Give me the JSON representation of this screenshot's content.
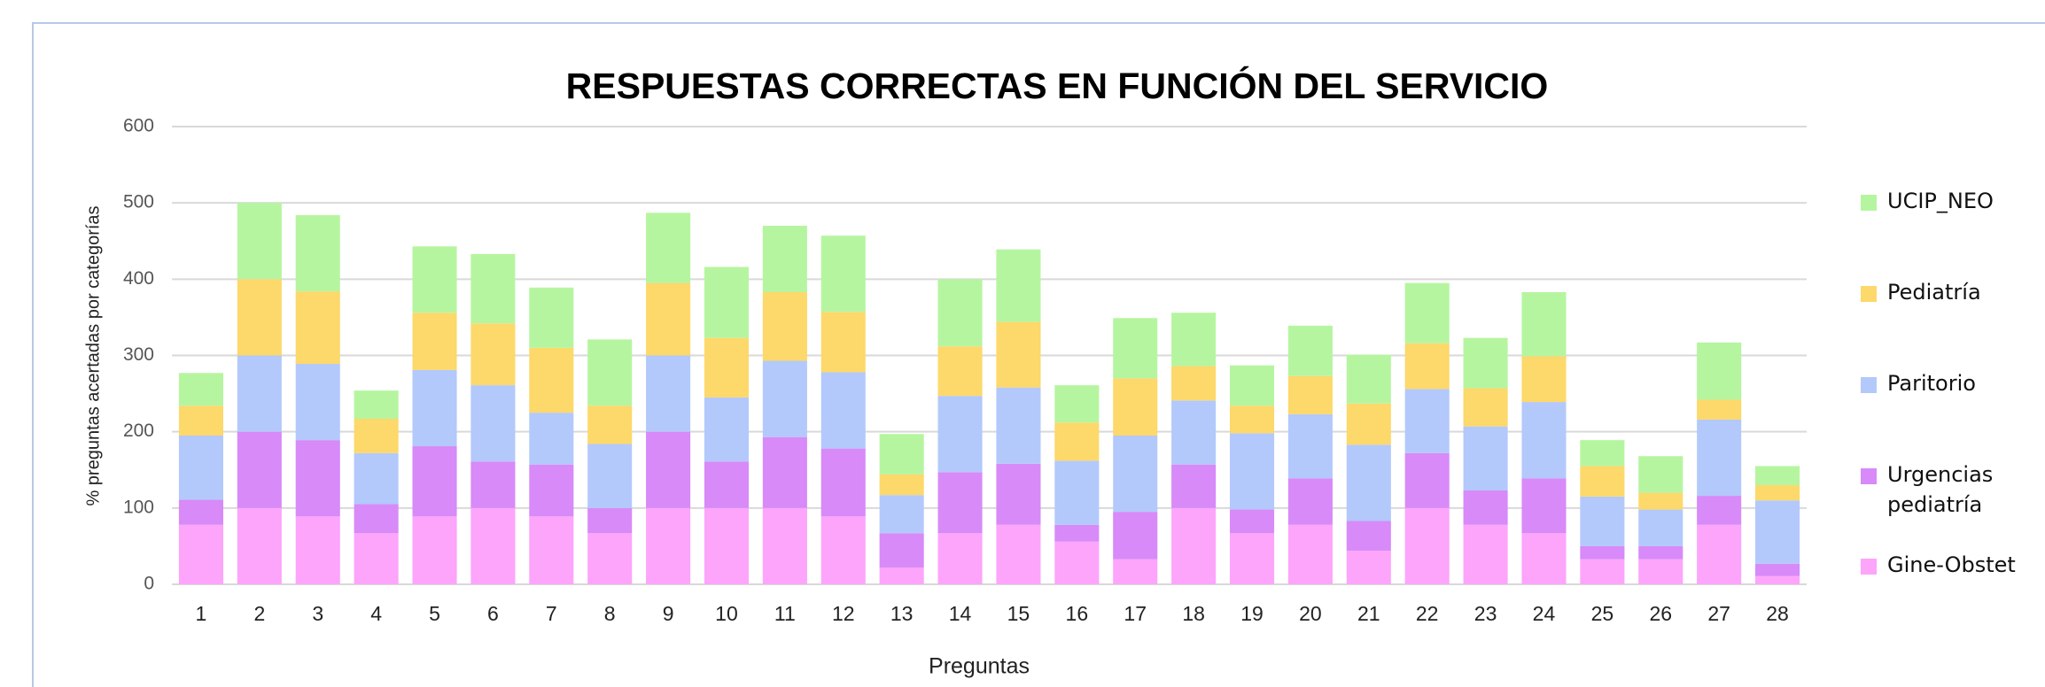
{
  "chart_data": {
    "type": "stacked_bar",
    "title": "RESPUESTAS CORRECTAS EN FUNCIÓN DEL SERVICIO",
    "x_label": "Preguntas",
    "y_label": "% preguntas acertadas por categorías",
    "categories": [
      "1",
      "2",
      "3",
      "4",
      "5",
      "6",
      "7",
      "8",
      "9",
      "10",
      "11",
      "12",
      "13",
      "14",
      "15",
      "16",
      "17",
      "18",
      "19",
      "20",
      "21",
      "22",
      "23",
      "24",
      "25",
      "26",
      "27",
      "28"
    ],
    "series": [
      {
        "name": "Gine-Obstet",
        "color": "#fca5fb",
        "values": [
          78,
          100,
          89,
          67,
          89,
          100,
          89,
          67,
          100,
          100,
          100,
          89,
          22,
          67,
          78,
          56,
          33,
          100,
          67,
          78,
          44,
          100,
          78,
          67,
          33,
          33,
          78,
          11
        ]
      },
      {
        "name": "Urgencias pediatría",
        "color": "#d78af8",
        "values": [
          33,
          100,
          100,
          38,
          92,
          61,
          68,
          33,
          100,
          61,
          93,
          89,
          45,
          80,
          80,
          22,
          62,
          57,
          31,
          61,
          39,
          72,
          45,
          72,
          17,
          17,
          38,
          16
        ]
      },
      {
        "name": "Paritorio",
        "color": "#b3c9fb",
        "values": [
          84,
          100,
          100,
          67,
          100,
          100,
          68,
          84,
          100,
          84,
          100,
          100,
          50,
          100,
          100,
          84,
          100,
          84,
          100,
          84,
          100,
          84,
          84,
          100,
          65,
          48,
          100,
          83
        ]
      },
      {
        "name": "Pediatría",
        "color": "#fdd86a",
        "values": [
          39,
          100,
          95,
          45,
          75,
          81,
          85,
          50,
          95,
          78,
          90,
          79,
          27,
          65,
          86,
          50,
          75,
          45,
          36,
          50,
          54,
          60,
          50,
          60,
          40,
          22,
          26,
          20
        ]
      },
      {
        "name": "UCIP_NEO",
        "color": "#b6f5a0",
        "values": [
          43,
          100,
          100,
          37,
          87,
          91,
          79,
          87,
          92,
          93,
          87,
          100,
          53,
          88,
          95,
          49,
          79,
          70,
          53,
          66,
          64,
          79,
          66,
          84,
          34,
          48,
          75,
          25
        ]
      }
    ],
    "ylim": [
      0,
      600
    ],
    "yticks": [
      0,
      100,
      200,
      300,
      400,
      500,
      600
    ],
    "grid": true,
    "legend": "right"
  }
}
